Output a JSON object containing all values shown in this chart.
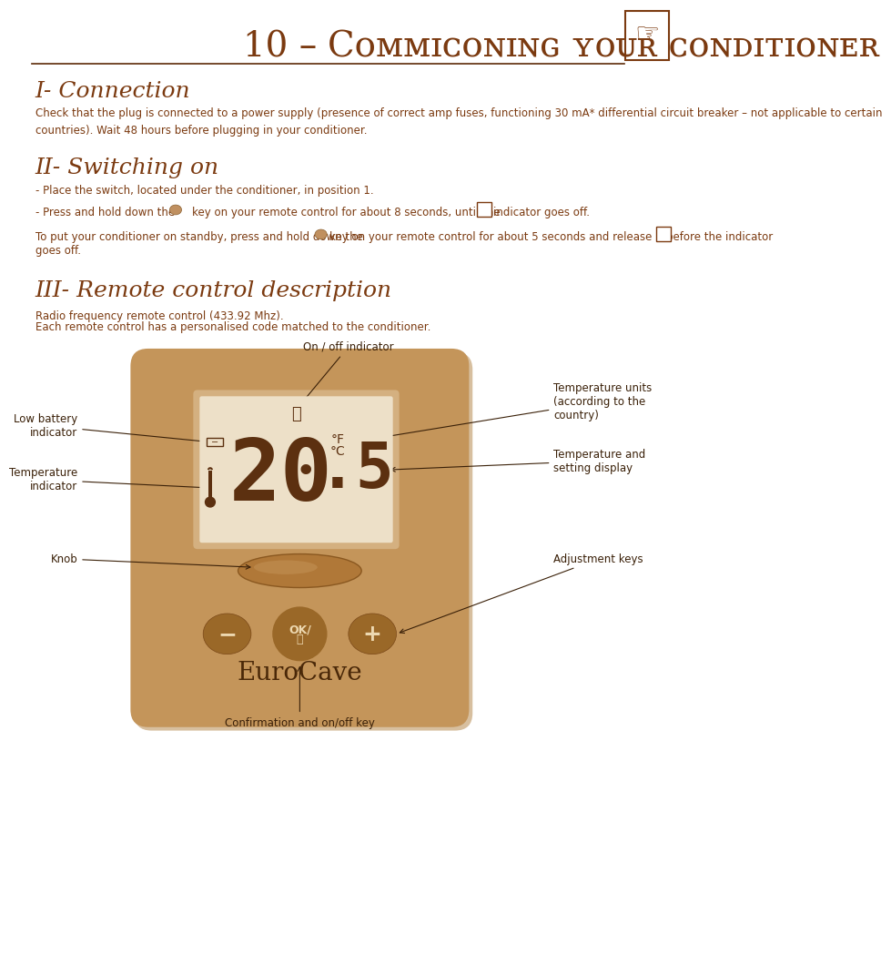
{
  "bg_color": "#ffffff",
  "text_color": "#7B3A10",
  "dark_color": "#5C2A08",
  "anno_color": "#3A2008",
  "title": "10 – Cᴏᴍᴍɪᴄᴏɴɪɴɢ ʏᴏᴜʀ ᴄᴏɴᴅɪᴛɪᴏɴᴇʀ",
  "title_simple": "10 – Commissioning your conditioner",
  "section1_title": "I- Connection",
  "section1_body": "Check that the plug is connected to a power supply (presence of correct amp fuses, functioning 30 mA* differential circuit breaker – not applicable to certain\ncountries). Wait 48 hours before plugging in your conditioner.",
  "section2_title": "II- Switching on",
  "section2_line1": "- Place the switch, located under the conditioner, in position 1.",
  "section3_title": "III- Remote control description",
  "section3_body1": "Radio frequency remote control (433.92 Mhz).",
  "section3_body2": "Each remote control has a personalised code matched to the conditioner.",
  "label_on_off": "On / off indicator",
  "label_low_battery": "Low battery\nindicator",
  "label_temperature": "Temperature\nindicator",
  "label_knob": "Knob",
  "label_temp_units": "Temperature units\n(according to the\ncountry)",
  "label_temp_display": "Temperature and\nsetting display",
  "label_adj_keys": "Adjustment keys",
  "label_confirm": "Confirmation and on/off key",
  "remote_body_color": "#C4955A",
  "remote_shadow_color": "#B08040",
  "display_outer_color": "#D4B080",
  "display_bg_color": "#EDE0C8",
  "display_digit_color": "#5C3010",
  "knob_color": "#B07838",
  "button_color": "#9A6828",
  "eurocave_color": "#4A2808"
}
